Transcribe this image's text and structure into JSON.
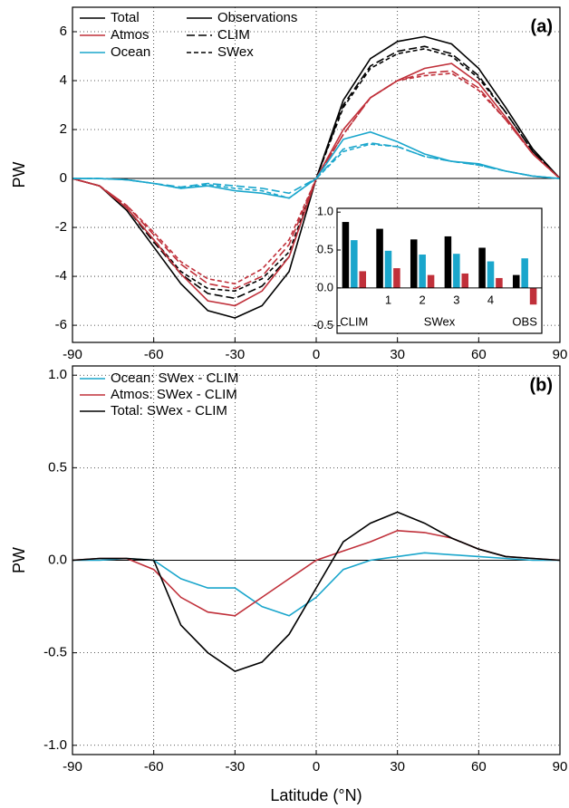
{
  "chart_data": [
    {
      "type": "line",
      "annotation": "(a)",
      "ylabel": "PW",
      "x": [
        -90,
        -80,
        -70,
        -60,
        -50,
        -40,
        -30,
        -20,
        -10,
        0,
        10,
        20,
        30,
        40,
        50,
        60,
        70,
        80,
        90
      ],
      "xlim": [
        -90,
        90
      ],
      "xticks": [
        -90,
        -60,
        -30,
        0,
        30,
        60,
        90
      ],
      "ylim": [
        -6.7,
        7
      ],
      "yticks": [
        -6,
        -4,
        -2,
        0,
        2,
        4,
        6
      ],
      "grid": true,
      "zero_line": true,
      "legend_colors": [
        {
          "name": "Total",
          "color": "#000000"
        },
        {
          "name": "Atmos",
          "color": "#c0303a"
        },
        {
          "name": "Ocean",
          "color": "#1aa6cc"
        }
      ],
      "legend_styles": [
        {
          "name": "Observations",
          "dash": "solid"
        },
        {
          "name": "CLIM",
          "dash": "long"
        },
        {
          "name": "SWex",
          "dash": "short"
        }
      ],
      "series": [
        {
          "color": "#000000",
          "dash": "solid",
          "values": [
            0,
            -0.3,
            -1.3,
            -2.8,
            -4.3,
            -5.4,
            -5.7,
            -5.2,
            -3.8,
            0,
            3.2,
            4.9,
            5.6,
            5.8,
            5.5,
            4.5,
            2.9,
            1.2,
            0
          ]
        },
        {
          "color": "#000000",
          "dash": "long",
          "values": [
            0,
            -0.3,
            -1.2,
            -2.6,
            -3.9,
            -4.7,
            -4.9,
            -4.4,
            -3.2,
            0,
            3.0,
            4.6,
            5.2,
            5.4,
            5.1,
            4.2,
            2.7,
            1.1,
            0
          ]
        },
        {
          "color": "#000000",
          "dash": "short",
          "values": [
            0,
            -0.3,
            -1.2,
            -2.5,
            -3.8,
            -4.5,
            -4.6,
            -4.1,
            -3.0,
            0,
            2.9,
            4.5,
            5.1,
            5.3,
            5.0,
            4.1,
            2.7,
            1.1,
            0
          ]
        },
        {
          "color": "#c0303a",
          "dash": "solid",
          "values": [
            0,
            -0.3,
            -1.2,
            -2.5,
            -3.9,
            -5.0,
            -5.2,
            -4.6,
            -3.2,
            0,
            2.0,
            3.3,
            4.0,
            4.5,
            4.7,
            3.9,
            2.5,
            1.0,
            0
          ]
        },
        {
          "color": "#c0303a",
          "dash": "long",
          "values": [
            0,
            -0.3,
            -1.1,
            -2.3,
            -3.5,
            -4.3,
            -4.5,
            -4.0,
            -2.7,
            0,
            1.8,
            3.3,
            4.0,
            4.3,
            4.4,
            3.7,
            2.4,
            1.0,
            0
          ]
        },
        {
          "color": "#c0303a",
          "dash": "short",
          "values": [
            0,
            -0.3,
            -1.1,
            -2.2,
            -3.4,
            -4.1,
            -4.3,
            -3.7,
            -2.5,
            0,
            1.8,
            3.3,
            4.0,
            4.2,
            4.3,
            3.6,
            2.4,
            1.0,
            0
          ]
        },
        {
          "color": "#1aa6cc",
          "dash": "solid",
          "values": [
            0,
            0,
            -0.05,
            -0.2,
            -0.4,
            -0.3,
            -0.5,
            -0.6,
            -0.8,
            0,
            1.6,
            1.9,
            1.5,
            1.0,
            0.7,
            0.6,
            0.3,
            0.1,
            0
          ]
        },
        {
          "color": "#1aa6cc",
          "dash": "long",
          "values": [
            0,
            0,
            -0.05,
            -0.2,
            -0.35,
            -0.2,
            -0.3,
            -0.4,
            -0.6,
            0,
            1.2,
            1.45,
            1.3,
            0.9,
            0.7,
            0.55,
            0.3,
            0.1,
            0
          ]
        },
        {
          "color": "#1aa6cc",
          "dash": "short",
          "values": [
            0,
            0,
            -0.05,
            -0.2,
            -0.4,
            -0.25,
            -0.4,
            -0.5,
            -0.8,
            0,
            1.1,
            1.4,
            1.3,
            0.9,
            0.7,
            0.55,
            0.3,
            0.1,
            0
          ]
        }
      ]
    },
    {
      "type": "bar",
      "categories": [
        "CLIM",
        "1",
        "2",
        "3",
        "4",
        "OBS"
      ],
      "group_label": "SWex",
      "ylim": [
        -0.6,
        1.05
      ],
      "yticks": [
        -0.5,
        {
          "value": 0,
          "label": "0.0"
        },
        0.5,
        {
          "value": 1,
          "label": "1.0"
        }
      ],
      "series": [
        {
          "color": "#000000",
          "values": [
            0.87,
            0.78,
            0.64,
            0.68,
            0.53,
            0.17
          ]
        },
        {
          "color": "#1aa6cc",
          "values": [
            0.63,
            0.49,
            0.44,
            0.45,
            0.35,
            0.39
          ]
        },
        {
          "color": "#c0303a",
          "values": [
            0.22,
            0.26,
            0.17,
            0.19,
            0.13,
            -0.22
          ]
        }
      ]
    },
    {
      "type": "line",
      "annotation": "(b)",
      "ylabel": "PW",
      "xlabel": "Latitude (°N)",
      "x": [
        -90,
        -80,
        -70,
        -60,
        -50,
        -40,
        -30,
        -20,
        -10,
        0,
        10,
        20,
        30,
        40,
        50,
        60,
        70,
        80,
        90
      ],
      "xlim": [
        -90,
        90
      ],
      "xticks": [
        -90,
        -60,
        -30,
        0,
        30,
        60,
        90
      ],
      "ylim": [
        -1.05,
        1.05
      ],
      "yticks": [
        {
          "value": -1,
          "label": "-1.0"
        },
        -0.5,
        {
          "value": 0,
          "label": "0.0"
        },
        0.5,
        {
          "value": 1,
          "label": "1.0"
        }
      ],
      "grid": true,
      "zero_line": true,
      "series": [
        {
          "name": "Ocean: SWex - CLIM",
          "color": "#1aa6cc",
          "dash": "solid",
          "values": [
            0,
            0,
            0.01,
            0,
            -0.1,
            -0.15,
            -0.15,
            -0.25,
            -0.3,
            -0.2,
            -0.05,
            0,
            0.02,
            0.04,
            0.03,
            0.02,
            0.01,
            0,
            0
          ]
        },
        {
          "name": "Atmos: SWex - CLIM",
          "color": "#c0303a",
          "dash": "solid",
          "values": [
            0,
            0.01,
            0.01,
            -0.05,
            -0.2,
            -0.28,
            -0.3,
            -0.2,
            -0.1,
            0,
            0.05,
            0.1,
            0.16,
            0.15,
            0.12,
            0.06,
            0.02,
            0.01,
            0
          ]
        },
        {
          "name": "Total: SWex - CLIM",
          "color": "#000000",
          "dash": "solid",
          "values": [
            0,
            0.01,
            0.01,
            0,
            -0.35,
            -0.5,
            -0.6,
            -0.55,
            -0.4,
            -0.15,
            0.1,
            0.2,
            0.26,
            0.2,
            0.12,
            0.06,
            0.02,
            0.01,
            0
          ]
        }
      ]
    }
  ]
}
